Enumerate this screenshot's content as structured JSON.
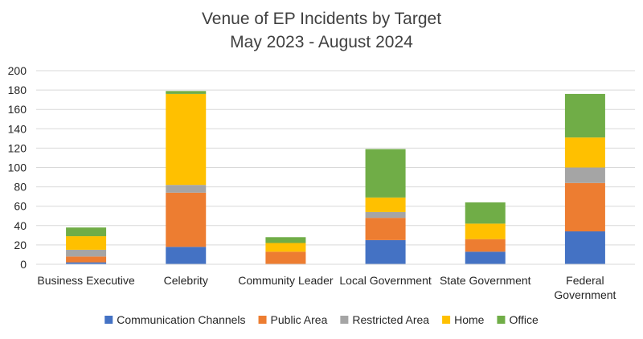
{
  "chart_data": {
    "type": "bar",
    "stacked": true,
    "title_lines": [
      "Venue of EP Incidents by Target",
      "May 2023 - August 2024"
    ],
    "categories": [
      [
        "Business Executive"
      ],
      [
        "Celebrity"
      ],
      [
        "Community Leader"
      ],
      [
        "Local Government"
      ],
      [
        "State Government"
      ],
      [
        "Federal",
        "Government"
      ]
    ],
    "series": [
      {
        "name": "Communication Channels",
        "color": "#4472C4",
        "values": [
          2,
          18,
          0,
          25,
          13,
          34
        ]
      },
      {
        "name": "Public Area",
        "color": "#ED7D31",
        "values": [
          6,
          56,
          13,
          23,
          13,
          50
        ]
      },
      {
        "name": "Restricted Area",
        "color": "#A5A5A5",
        "values": [
          7,
          8,
          0,
          6,
          0,
          16
        ]
      },
      {
        "name": "Home",
        "color": "#FFC000",
        "values": [
          14,
          94,
          9,
          15,
          16,
          31
        ]
      },
      {
        "name": "Office",
        "color": "#70AD47",
        "values": [
          9,
          3,
          6,
          50,
          22,
          45
        ]
      }
    ],
    "ylim": [
      0,
      200
    ],
    "yticks": [
      "0",
      "20",
      "40",
      "60",
      "80",
      "100",
      "120",
      "140",
      "160",
      "180",
      "200"
    ],
    "grid": true,
    "legend_position": "bottom"
  }
}
